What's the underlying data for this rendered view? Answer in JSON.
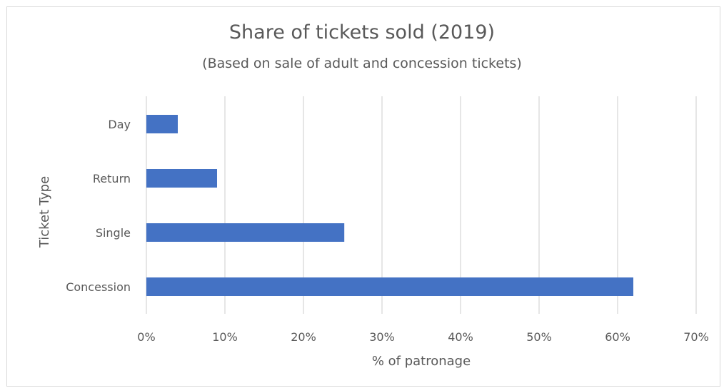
{
  "chart_data": {
    "type": "bar",
    "orientation": "horizontal",
    "title": "Share of tickets sold (2019)",
    "subtitle": "(Based on sale of adult and concession tickets)",
    "xlabel": "% of patronage",
    "ylabel": "Ticket Type",
    "categories": [
      "Day",
      "Return",
      "Single",
      "Concession"
    ],
    "values": [
      4,
      9,
      25.2,
      62
    ],
    "xlim": [
      0,
      70
    ],
    "xticks": [
      0,
      10,
      20,
      30,
      40,
      50,
      60,
      70
    ],
    "xtick_labels": [
      "0%",
      "10%",
      "20%",
      "30%",
      "40%",
      "50%",
      "60%",
      "70%"
    ],
    "grid": "vertical",
    "legend": "none",
    "bar_color": "#4472c4",
    "grid_color": "#d9d9d9"
  }
}
